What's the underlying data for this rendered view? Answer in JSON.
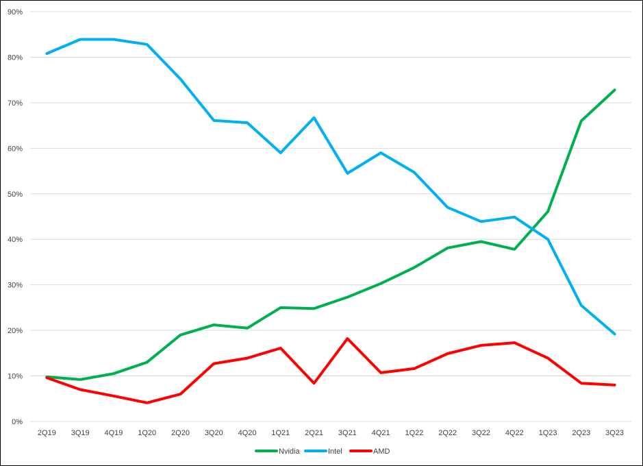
{
  "chart_data": {
    "type": "line",
    "title": "",
    "xlabel": "",
    "ylabel": "",
    "ylim": [
      0,
      90
    ],
    "y_ticks": [
      "0%",
      "10%",
      "20%",
      "30%",
      "40%",
      "50%",
      "60%",
      "70%",
      "80%",
      "90%"
    ],
    "y_tick_values": [
      0,
      10,
      20,
      30,
      40,
      50,
      60,
      70,
      80,
      90
    ],
    "grid": "horizontal",
    "legend_position": "bottom",
    "categories": [
      "2Q19",
      "3Q19",
      "4Q19",
      "1Q20",
      "2Q20",
      "3Q20",
      "4Q20",
      "1Q21",
      "2Q21",
      "3Q21",
      "4Q21",
      "1Q22",
      "2Q22",
      "3Q22",
      "4Q22",
      "1Q23",
      "2Q23",
      "3Q23"
    ],
    "series": [
      {
        "name": "Nvidia",
        "color": "#00b050",
        "values": [
          9.8,
          9.2,
          10.5,
          13.0,
          19.0,
          21.2,
          20.5,
          25.0,
          24.8,
          27.3,
          30.3,
          33.8,
          38.1,
          39.5,
          37.8,
          46.1,
          66.0,
          72.8
        ]
      },
      {
        "name": "Intel",
        "color": "#00b0f0",
        "values": [
          80.8,
          83.9,
          83.9,
          82.8,
          75.2,
          66.1,
          65.6,
          59.0,
          66.7,
          54.5,
          59.0,
          54.7,
          47.0,
          43.9,
          44.9,
          40.0,
          25.5,
          19.2
        ]
      },
      {
        "name": "AMD",
        "color": "#ff0000",
        "values": [
          9.6,
          7.0,
          5.6,
          4.1,
          6.0,
          12.7,
          13.9,
          16.1,
          8.4,
          18.2,
          10.7,
          11.6,
          14.9,
          16.7,
          17.3,
          13.9,
          8.4,
          8.0
        ]
      }
    ]
  }
}
